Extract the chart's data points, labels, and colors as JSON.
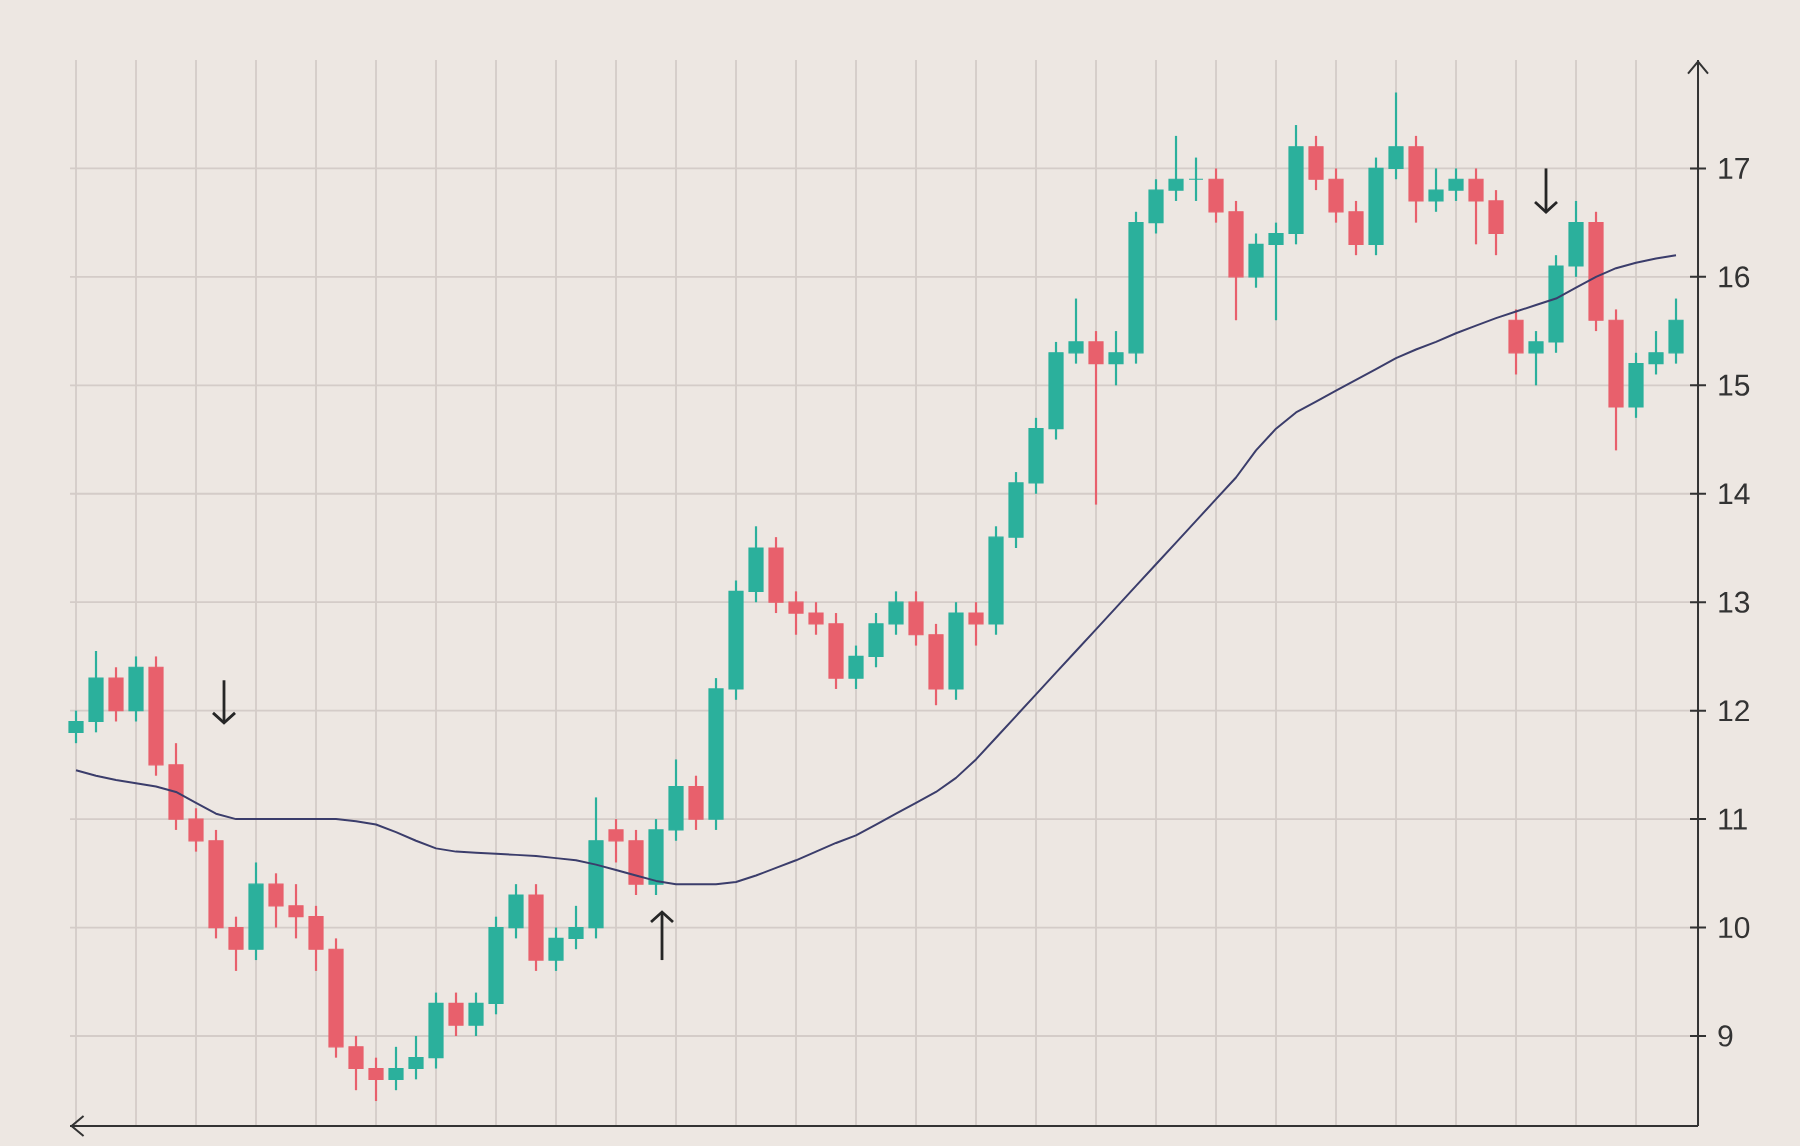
{
  "chart_data": {
    "type": "candlestick",
    "categories": [
      null,
      null,
      null,
      null,
      null,
      null,
      null,
      null,
      null,
      null,
      null,
      null,
      null,
      null,
      null,
      null,
      null,
      null,
      null,
      null,
      null,
      null,
      null,
      null,
      null,
      null,
      null,
      null,
      null,
      null,
      null,
      null,
      null,
      null,
      null,
      null,
      null,
      null,
      null,
      null,
      null,
      null,
      null,
      null,
      null,
      null,
      null,
      null,
      null,
      null,
      null,
      null,
      null,
      null,
      null,
      null,
      null,
      null,
      null,
      null,
      null,
      null,
      null,
      null,
      null,
      null,
      null,
      null,
      null,
      null,
      null,
      null,
      null,
      null,
      null,
      null,
      null,
      null,
      null,
      null,
      null
    ],
    "ohlc": [
      [
        11.8,
        12.0,
        11.7,
        11.9
      ],
      [
        11.9,
        12.55,
        11.8,
        12.3
      ],
      [
        12.3,
        12.4,
        11.9,
        12.0
      ],
      [
        12.0,
        12.5,
        11.9,
        12.4
      ],
      [
        12.4,
        12.5,
        11.4,
        11.5
      ],
      [
        11.5,
        11.7,
        10.9,
        11.0
      ],
      [
        11.0,
        11.1,
        10.7,
        10.8
      ],
      [
        10.8,
        10.9,
        9.9,
        10.0
      ],
      [
        10.0,
        10.1,
        9.6,
        9.8
      ],
      [
        9.8,
        10.6,
        9.7,
        10.4
      ],
      [
        10.4,
        10.5,
        10.0,
        10.2
      ],
      [
        10.2,
        10.4,
        9.9,
        10.1
      ],
      [
        10.1,
        10.2,
        9.6,
        9.8
      ],
      [
        9.8,
        9.9,
        8.8,
        8.9
      ],
      [
        8.9,
        9.0,
        8.5,
        8.7
      ],
      [
        8.7,
        8.8,
        8.4,
        8.6
      ],
      [
        8.6,
        8.9,
        8.5,
        8.7
      ],
      [
        8.7,
        9.0,
        8.6,
        8.8
      ],
      [
        8.8,
        9.4,
        8.7,
        9.3
      ],
      [
        9.3,
        9.4,
        9.0,
        9.1
      ],
      [
        9.1,
        9.4,
        9.0,
        9.3
      ],
      [
        9.3,
        10.1,
        9.2,
        10.0
      ],
      [
        10.0,
        10.4,
        9.9,
        10.3
      ],
      [
        10.3,
        10.4,
        9.6,
        9.7
      ],
      [
        9.7,
        10.0,
        9.6,
        9.9
      ],
      [
        9.9,
        10.2,
        9.8,
        10.0
      ],
      [
        10.0,
        11.2,
        9.9,
        10.8
      ],
      [
        10.9,
        11.0,
        10.6,
        10.8
      ],
      [
        10.8,
        10.9,
        10.3,
        10.4
      ],
      [
        10.4,
        11.0,
        10.3,
        10.9
      ],
      [
        10.9,
        11.55,
        10.8,
        11.3
      ],
      [
        11.3,
        11.4,
        10.9,
        11.0
      ],
      [
        11.0,
        12.3,
        10.9,
        12.2
      ],
      [
        12.2,
        13.2,
        12.1,
        13.1
      ],
      [
        13.1,
        13.7,
        13.0,
        13.5
      ],
      [
        13.5,
        13.6,
        12.9,
        13.0
      ],
      [
        13.0,
        13.1,
        12.7,
        12.9
      ],
      [
        12.9,
        13.0,
        12.7,
        12.8
      ],
      [
        12.8,
        12.9,
        12.2,
        12.3
      ],
      [
        12.3,
        12.6,
        12.2,
        12.5
      ],
      [
        12.5,
        12.9,
        12.4,
        12.8
      ],
      [
        12.8,
        13.1,
        12.7,
        13.0
      ],
      [
        13.0,
        13.1,
        12.6,
        12.7
      ],
      [
        12.7,
        12.8,
        12.05,
        12.2
      ],
      [
        12.2,
        13.0,
        12.1,
        12.9
      ],
      [
        12.9,
        13.0,
        12.6,
        12.8
      ],
      [
        12.8,
        13.7,
        12.7,
        13.6
      ],
      [
        13.6,
        14.2,
        13.5,
        14.1
      ],
      [
        14.1,
        14.7,
        14.0,
        14.6
      ],
      [
        14.6,
        15.4,
        14.5,
        15.3
      ],
      [
        15.3,
        15.8,
        15.2,
        15.4
      ],
      [
        15.4,
        15.5,
        13.9,
        15.2
      ],
      [
        15.2,
        15.5,
        15.0,
        15.3
      ],
      [
        15.3,
        16.6,
        15.2,
        16.5
      ],
      [
        16.5,
        16.9,
        16.4,
        16.8
      ],
      [
        16.8,
        17.3,
        16.7,
        16.9
      ],
      [
        16.9,
        17.1,
        16.7,
        16.9
      ],
      [
        16.9,
        17.0,
        16.5,
        16.6
      ],
      [
        16.6,
        16.7,
        15.6,
        16.0
      ],
      [
        16.0,
        16.4,
        15.9,
        16.3
      ],
      [
        16.3,
        16.5,
        15.6,
        16.4
      ],
      [
        16.4,
        17.4,
        16.3,
        17.2
      ],
      [
        17.2,
        17.3,
        16.8,
        16.9
      ],
      [
        16.9,
        17.0,
        16.5,
        16.6
      ],
      [
        16.6,
        16.7,
        16.2,
        16.3
      ],
      [
        16.3,
        17.1,
        16.2,
        17.0
      ],
      [
        17.0,
        17.7,
        16.9,
        17.2
      ],
      [
        17.2,
        17.3,
        16.5,
        16.7
      ],
      [
        16.7,
        17.0,
        16.6,
        16.8
      ],
      [
        16.8,
        17.0,
        16.7,
        16.9
      ],
      [
        16.9,
        17.0,
        16.3,
        16.7
      ],
      [
        16.7,
        16.8,
        16.2,
        16.4
      ],
      [
        15.6,
        15.7,
        15.1,
        15.3
      ],
      [
        15.3,
        15.5,
        15.0,
        15.4
      ],
      [
        15.4,
        16.2,
        15.3,
        16.1
      ],
      [
        16.1,
        16.7,
        16.0,
        16.5
      ],
      [
        16.5,
        16.6,
        15.5,
        15.6
      ],
      [
        15.6,
        15.7,
        14.4,
        14.8
      ],
      [
        14.8,
        15.3,
        14.7,
        15.2
      ],
      [
        15.2,
        15.5,
        15.1,
        15.3
      ],
      [
        15.3,
        15.8,
        15.2,
        15.6
      ]
    ],
    "colors": [
      "#2bb09c",
      "#2bb09c",
      "#e8606c",
      "#2bb09c",
      "#e8606c",
      "#e8606c",
      "#e8606c",
      "#e8606c",
      "#e8606c",
      "#2bb09c",
      "#e8606c",
      "#e8606c",
      "#e8606c",
      "#e8606c",
      "#e8606c",
      "#e8606c",
      "#2bb09c",
      "#2bb09c",
      "#2bb09c",
      "#e8606c",
      "#2bb09c",
      "#2bb09c",
      "#2bb09c",
      "#e8606c",
      "#2bb09c",
      "#2bb09c",
      "#2bb09c",
      "#e8606c",
      "#e8606c",
      "#2bb09c",
      "#2bb09c",
      "#e8606c",
      "#2bb09c",
      "#2bb09c",
      "#2bb09c",
      "#e8606c",
      "#e8606c",
      "#e8606c",
      "#e8606c",
      "#2bb09c",
      "#2bb09c",
      "#2bb09c",
      "#e8606c",
      "#e8606c",
      "#2bb09c",
      "#e8606c",
      "#2bb09c",
      "#2bb09c",
      "#2bb09c",
      "#2bb09c",
      "#2bb09c",
      "#e8606c",
      "#2bb09c",
      "#2bb09c",
      "#2bb09c",
      "#2bb09c",
      "#2bb09c",
      "#e8606c",
      "#e8606c",
      "#2bb09c",
      "#2bb09c",
      "#2bb09c",
      "#e8606c",
      "#e8606c",
      "#e8606c",
      "#2bb09c",
      "#2bb09c",
      "#e8606c",
      "#2bb09c",
      "#2bb09c",
      "#e8606c",
      "#e8606c",
      "#e8606c",
      "#2bb09c",
      "#2bb09c",
      "#2bb09c",
      "#e8606c",
      "#e8606c",
      "#2bb09c",
      "#2bb09c",
      "#2bb09c"
    ],
    "series": [
      {
        "type": "line",
        "color": "#3b3d6b",
        "values": [
          11.45,
          11.4,
          11.36,
          11.33,
          11.3,
          11.25,
          11.15,
          11.05,
          11.0,
          11.0,
          11.0,
          11.0,
          11.0,
          11.0,
          10.98,
          10.95,
          10.88,
          10.8,
          10.73,
          10.7,
          10.69,
          10.68,
          10.67,
          10.66,
          10.64,
          10.62,
          10.58,
          10.53,
          10.48,
          10.43,
          10.4,
          10.4,
          10.4,
          10.42,
          10.48,
          10.55,
          10.62,
          10.7,
          10.78,
          10.85,
          10.95,
          11.05,
          11.15,
          11.25,
          11.38,
          11.55,
          11.75,
          11.95,
          12.15,
          12.35,
          12.55,
          12.75,
          12.95,
          13.15,
          13.35,
          13.55,
          13.75,
          13.95,
          14.15,
          14.4,
          14.6,
          14.75,
          14.85,
          14.95,
          15.05,
          15.15,
          15.25,
          15.33,
          15.4,
          15.48,
          15.55,
          15.62,
          15.68,
          15.74,
          15.8,
          15.9,
          16.0,
          16.08,
          16.13,
          16.17,
          16.2
        ]
      }
    ],
    "ylim": [
      8.17,
      18.0
    ],
    "yticks": [
      9,
      10,
      11,
      12,
      13,
      14,
      15,
      16,
      17
    ],
    "grid": true
  }
}
